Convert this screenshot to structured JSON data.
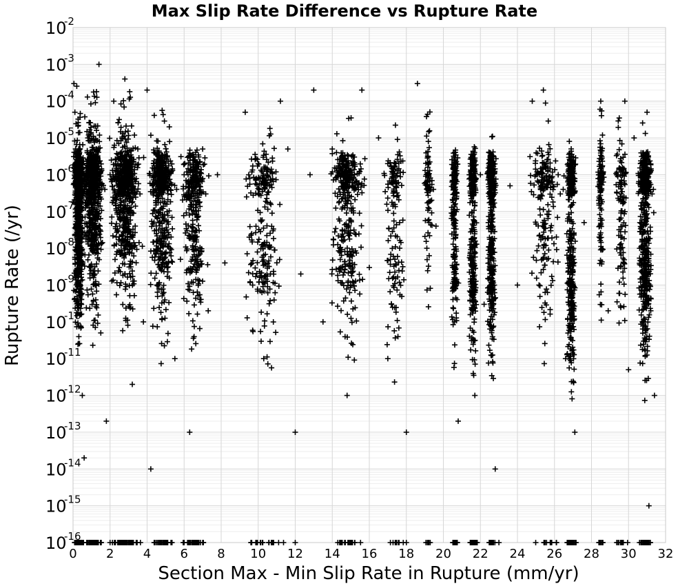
{
  "chart_data": {
    "type": "scatter",
    "title": "Max Slip Rate Difference vs Rupture Rate",
    "xlabel": "Section Max - Min Slip Rate in Rupture (mm/yr)",
    "ylabel": "Rupture Rate (/yr)",
    "xlim": [
      0,
      32
    ],
    "ylim": [
      1e-16,
      0.01
    ],
    "yscale": "log",
    "marker": "plus",
    "marker_color": "#000000",
    "grid": true,
    "x_ticks": [
      "0",
      "2",
      "4",
      "6",
      "8",
      "10",
      "12",
      "14",
      "16",
      "18",
      "20",
      "22",
      "24",
      "26",
      "28",
      "30",
      "32"
    ],
    "y_ticks": [
      {
        "base": "10",
        "exp": "-16"
      },
      {
        "base": "10",
        "exp": "-15"
      },
      {
        "base": "10",
        "exp": "-14"
      },
      {
        "base": "10",
        "exp": "-13"
      },
      {
        "base": "10",
        "exp": "-12"
      },
      {
        "base": "10",
        "exp": "-11"
      },
      {
        "base": "10",
        "exp": "-10"
      },
      {
        "base": "10",
        "exp": "-9"
      },
      {
        "base": "10",
        "exp": "-8"
      },
      {
        "base": "10",
        "exp": "-7"
      },
      {
        "base": "10",
        "exp": "-6"
      },
      {
        "base": "10",
        "exp": "-5"
      },
      {
        "base": "10",
        "exp": "-4"
      },
      {
        "base": "10",
        "exp": "-3"
      },
      {
        "base": "10",
        "exp": "-2"
      }
    ],
    "points": [
      [
        0.05,
        0.0003
      ],
      [
        0.1,
        5e-05
      ],
      [
        0.2,
        2e-06
      ],
      [
        0.3,
        1e-08
      ],
      [
        0.4,
        5e-10
      ],
      [
        0.5,
        1e-12
      ],
      [
        0.6,
        2e-14
      ],
      [
        0.15,
        1e-16
      ],
      [
        0.8,
        1e-05
      ],
      [
        1.0,
        3e-07
      ],
      [
        1.2,
        1e-09
      ],
      [
        1.4,
        0.001
      ],
      [
        1.5,
        5e-11
      ],
      [
        1.8,
        2e-13
      ],
      [
        2.0,
        1e-06
      ],
      [
        2.2,
        0.0001
      ],
      [
        2.5,
        3e-09
      ],
      [
        2.8,
        0.0004
      ],
      [
        3.0,
        1e-07
      ],
      [
        3.2,
        2e-12
      ],
      [
        3.5,
        5e-06
      ],
      [
        3.8,
        1e-10
      ],
      [
        4.0,
        0.0002
      ],
      [
        4.2,
        1e-14
      ],
      [
        4.4,
        3e-08
      ],
      [
        4.8,
        1e-06
      ],
      [
        5.2,
        2e-05
      ],
      [
        5.5,
        1e-11
      ],
      [
        5.8,
        5e-09
      ],
      [
        6.0,
        1e-06
      ],
      [
        6.3,
        1e-13
      ],
      [
        6.7,
        2e-07
      ],
      [
        7.0,
        5e-06
      ],
      [
        7.3,
        2e-10
      ],
      [
        7.8,
        1e-06
      ],
      [
        8.2,
        4e-09
      ],
      [
        9.3,
        5e-05
      ],
      [
        9.7,
        1e-09
      ],
      [
        10.0,
        2e-06
      ],
      [
        10.3,
        1e-11
      ],
      [
        10.8,
        3e-08
      ],
      [
        11.2,
        0.0001
      ],
      [
        11.6,
        5e-06
      ],
      [
        12.0,
        1e-13
      ],
      [
        12.3,
        2e-09
      ],
      [
        12.8,
        1e-06
      ],
      [
        13.0,
        0.0002
      ],
      [
        13.5,
        1e-10
      ],
      [
        14.0,
        5e-06
      ],
      [
        14.5,
        2e-08
      ],
      [
        14.8,
        1e-12
      ],
      [
        15.2,
        1e-06
      ],
      [
        15.6,
        0.0002
      ],
      [
        16.0,
        3e-09
      ],
      [
        16.5,
        1e-05
      ],
      [
        17.0,
        1e-11
      ],
      [
        17.4,
        2e-06
      ],
      [
        18.0,
        1e-13
      ],
      [
        18.6,
        0.0003
      ],
      [
        19.2,
        1e-06
      ],
      [
        19.6,
        4e-08
      ],
      [
        20.5,
        1e-06
      ],
      [
        20.6,
        1e-10
      ],
      [
        20.8,
        2e-13
      ],
      [
        21.4,
        1e-06
      ],
      [
        21.5,
        5e-09
      ],
      [
        21.7,
        1e-12
      ],
      [
        22.0,
        1e-06
      ],
      [
        22.2,
        3e-10
      ],
      [
        22.5,
        2e-06
      ],
      [
        22.7,
        1e-08
      ],
      [
        22.8,
        1e-14
      ],
      [
        23.6,
        5e-07
      ],
      [
        24.0,
        1e-09
      ],
      [
        24.8,
        0.0001
      ],
      [
        25.0,
        1e-06
      ],
      [
        25.4,
        0.0002
      ],
      [
        25.8,
        3e-08
      ],
      [
        26.2,
        1e-06
      ],
      [
        26.6,
        1e-11
      ],
      [
        26.9,
        2e-06
      ],
      [
        27.0,
        1e-09
      ],
      [
        27.1,
        1e-13
      ],
      [
        27.6,
        5e-08
      ],
      [
        28.4,
        1e-06
      ],
      [
        28.5,
        0.0001
      ],
      [
        28.9,
        2e-10
      ],
      [
        29.4,
        1e-06
      ],
      [
        29.8,
        0.0001
      ],
      [
        30.0,
        5e-12
      ],
      [
        30.3,
        1e-05
      ],
      [
        30.6,
        1e-08
      ],
      [
        30.8,
        1e-06
      ],
      [
        31.0,
        5e-05
      ],
      [
        31.2,
        2e-10
      ],
      [
        31.4,
        1e-12
      ],
      [
        31.1,
        1e-15
      ],
      [
        2.0,
        1e-16
      ],
      [
        6.0,
        1e-16
      ],
      [
        12.0,
        1e-16
      ],
      [
        18.0,
        1e-16
      ],
      [
        23.0,
        1e-16
      ],
      [
        27.0,
        1e-16
      ],
      [
        31.0,
        1e-16
      ]
    ],
    "clusters": [
      {
        "x_center": 0.3,
        "x_spread": 0.35,
        "count": 900,
        "logy_min": -16,
        "logy_max": -3.4,
        "logy_center": -7.5
      },
      {
        "x_center": 1.1,
        "x_spread": 0.7,
        "count": 700,
        "logy_min": -16,
        "logy_max": -3.7,
        "logy_center": -7
      },
      {
        "x_center": 2.8,
        "x_spread": 1.1,
        "count": 700,
        "logy_min": -16,
        "logy_max": -3.6,
        "logy_center": -7
      },
      {
        "x_center": 4.8,
        "x_spread": 0.9,
        "count": 500,
        "logy_min": -16,
        "logy_max": -4.2,
        "logy_center": -7.5
      },
      {
        "x_center": 6.5,
        "x_spread": 0.9,
        "count": 350,
        "logy_min": -16,
        "logy_max": -4.6,
        "logy_center": -7.5
      },
      {
        "x_center": 10.3,
        "x_spread": 1.4,
        "count": 250,
        "logy_min": -16,
        "logy_max": -4.2,
        "logy_center": -8
      },
      {
        "x_center": 14.8,
        "x_spread": 1.2,
        "count": 380,
        "logy_min": -16,
        "logy_max": -3.6,
        "logy_center": -8
      },
      {
        "x_center": 17.4,
        "x_spread": 0.8,
        "count": 150,
        "logy_min": -16,
        "logy_max": -4.6,
        "logy_center": -8
      },
      {
        "x_center": 19.2,
        "x_spread": 0.3,
        "count": 90,
        "logy_min": -16,
        "logy_max": -4.2,
        "logy_center": -6.5
      },
      {
        "x_center": 20.6,
        "x_spread": 0.25,
        "count": 250,
        "logy_min": -16,
        "logy_max": -4.8,
        "logy_center": -8
      },
      {
        "x_center": 21.6,
        "x_spread": 0.3,
        "count": 350,
        "logy_min": -16,
        "logy_max": -4.4,
        "logy_center": -8.5
      },
      {
        "x_center": 22.6,
        "x_spread": 0.3,
        "count": 450,
        "logy_min": -16,
        "logy_max": -4.4,
        "logy_center": -8.5
      },
      {
        "x_center": 25.5,
        "x_spread": 1.1,
        "count": 200,
        "logy_min": -16,
        "logy_max": -4.0,
        "logy_center": -7.5
      },
      {
        "x_center": 26.9,
        "x_spread": 0.35,
        "count": 450,
        "logy_min": -16,
        "logy_max": -4.7,
        "logy_center": -9
      },
      {
        "x_center": 28.5,
        "x_spread": 0.2,
        "count": 130,
        "logy_min": -16,
        "logy_max": -4.2,
        "logy_center": -7
      },
      {
        "x_center": 29.6,
        "x_spread": 0.4,
        "count": 130,
        "logy_min": -16,
        "logy_max": -4.2,
        "logy_center": -7.5
      },
      {
        "x_center": 30.9,
        "x_spread": 0.5,
        "count": 550,
        "logy_min": -16,
        "logy_max": -4.0,
        "logy_center": -8.5
      }
    ]
  }
}
